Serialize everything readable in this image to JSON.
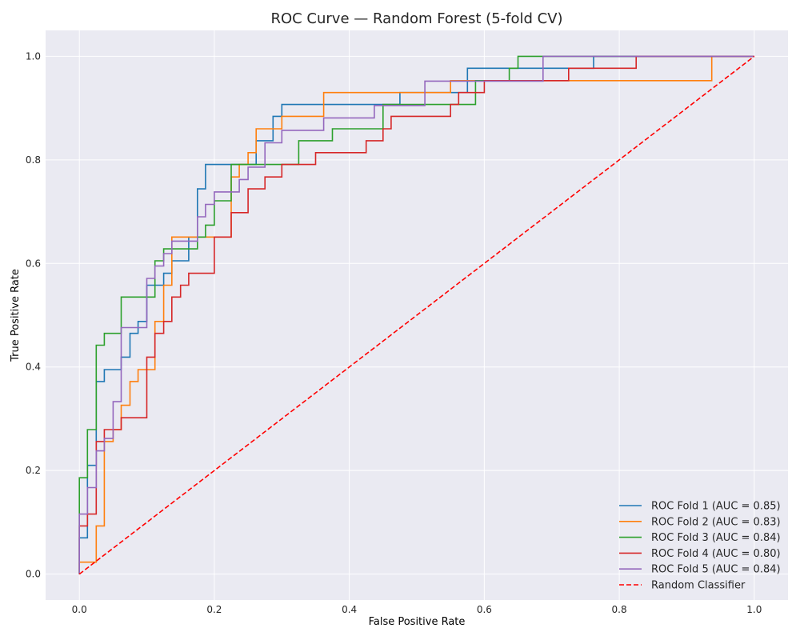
{
  "chart_data": {
    "type": "line",
    "title": "ROC Curve — Random Forest (5-fold CV)",
    "xlabel": "False Positive Rate",
    "ylabel": "True Positive Rate",
    "xlim": [
      -0.05,
      1.05
    ],
    "ylim": [
      -0.05,
      1.05
    ],
    "xticks": [
      "0.0",
      "0.2",
      "0.4",
      "0.6",
      "0.8",
      "1.0"
    ],
    "yticks": [
      "0.0",
      "0.2",
      "0.4",
      "0.6",
      "0.8",
      "1.0"
    ],
    "grid": true,
    "legend_position": "lower-right",
    "series": [
      {
        "name": "ROC Fold 1 (AUC = 0.85)",
        "color": "#1f77b4",
        "step": true,
        "dash": false,
        "x": [
          0.0,
          0.0,
          0.012,
          0.012,
          0.025,
          0.025,
          0.037,
          0.037,
          0.062,
          0.062,
          0.075,
          0.075,
          0.087,
          0.087,
          0.1,
          0.1,
          0.125,
          0.125,
          0.137,
          0.137,
          0.162,
          0.162,
          0.175,
          0.175,
          0.187,
          0.187,
          0.262,
          0.262,
          0.287,
          0.287,
          0.3,
          0.3,
          0.475,
          0.475,
          0.575,
          0.575,
          0.762,
          0.762,
          1.0
        ],
        "y": [
          0.0,
          0.07,
          0.07,
          0.21,
          0.21,
          0.372,
          0.372,
          0.395,
          0.395,
          0.419,
          0.419,
          0.465,
          0.465,
          0.488,
          0.488,
          0.558,
          0.558,
          0.581,
          0.581,
          0.605,
          0.605,
          0.651,
          0.651,
          0.744,
          0.744,
          0.791,
          0.791,
          0.837,
          0.837,
          0.884,
          0.884,
          0.907,
          0.907,
          0.93,
          0.93,
          0.977,
          0.977,
          1.0,
          1.0
        ]
      },
      {
        "name": "ROC Fold 2 (AUC = 0.83)",
        "color": "#ff7f0e",
        "step": true,
        "dash": false,
        "x": [
          0.0,
          0.0,
          0.025,
          0.025,
          0.037,
          0.037,
          0.05,
          0.05,
          0.062,
          0.062,
          0.075,
          0.075,
          0.087,
          0.087,
          0.112,
          0.112,
          0.125,
          0.125,
          0.137,
          0.137,
          0.162,
          0.162,
          0.225,
          0.225,
          0.237,
          0.237,
          0.25,
          0.25,
          0.262,
          0.262,
          0.3,
          0.3,
          0.362,
          0.362,
          0.55,
          0.55,
          0.937,
          0.937,
          1.0
        ],
        "y": [
          0.0,
          0.023,
          0.023,
          0.093,
          0.093,
          0.256,
          0.256,
          0.279,
          0.279,
          0.326,
          0.326,
          0.372,
          0.372,
          0.395,
          0.395,
          0.488,
          0.488,
          0.558,
          0.558,
          0.651,
          0.651,
          0.651,
          0.651,
          0.767,
          0.767,
          0.791,
          0.791,
          0.814,
          0.814,
          0.86,
          0.86,
          0.884,
          0.884,
          0.93,
          0.93,
          0.953,
          0.953,
          1.0,
          1.0
        ]
      },
      {
        "name": "ROC Fold 3 (AUC = 0.84)",
        "color": "#2ca02c",
        "step": true,
        "dash": false,
        "x": [
          0.0,
          0.0,
          0.012,
          0.012,
          0.025,
          0.025,
          0.037,
          0.037,
          0.062,
          0.062,
          0.112,
          0.112,
          0.125,
          0.125,
          0.175,
          0.175,
          0.187,
          0.187,
          0.2,
          0.2,
          0.225,
          0.225,
          0.325,
          0.325,
          0.375,
          0.375,
          0.45,
          0.45,
          0.587,
          0.587,
          0.637,
          0.637,
          0.65,
          0.65,
          1.0
        ],
        "y": [
          0.0,
          0.186,
          0.186,
          0.279,
          0.279,
          0.442,
          0.442,
          0.465,
          0.465,
          0.535,
          0.535,
          0.605,
          0.605,
          0.628,
          0.628,
          0.651,
          0.651,
          0.674,
          0.674,
          0.721,
          0.721,
          0.791,
          0.791,
          0.837,
          0.837,
          0.86,
          0.86,
          0.907,
          0.907,
          0.953,
          0.953,
          0.977,
          0.977,
          1.0,
          1.0
        ]
      },
      {
        "name": "ROC Fold 4 (AUC = 0.80)",
        "color": "#d62728",
        "step": true,
        "dash": false,
        "x": [
          0.0,
          0.0,
          0.012,
          0.012,
          0.025,
          0.025,
          0.037,
          0.037,
          0.062,
          0.062,
          0.1,
          0.1,
          0.112,
          0.112,
          0.125,
          0.125,
          0.137,
          0.137,
          0.15,
          0.15,
          0.162,
          0.162,
          0.2,
          0.2,
          0.225,
          0.225,
          0.25,
          0.25,
          0.275,
          0.275,
          0.3,
          0.3,
          0.35,
          0.35,
          0.425,
          0.425,
          0.45,
          0.45,
          0.462,
          0.462,
          0.55,
          0.55,
          0.562,
          0.562,
          0.6,
          0.6,
          0.625,
          0.625,
          0.725,
          0.725,
          0.825,
          0.825,
          1.0
        ],
        "y": [
          0.0,
          0.093,
          0.093,
          0.116,
          0.116,
          0.256,
          0.256,
          0.279,
          0.279,
          0.302,
          0.302,
          0.419,
          0.419,
          0.465,
          0.465,
          0.488,
          0.488,
          0.535,
          0.535,
          0.558,
          0.558,
          0.581,
          0.581,
          0.651,
          0.651,
          0.698,
          0.698,
          0.744,
          0.744,
          0.767,
          0.767,
          0.791,
          0.791,
          0.814,
          0.814,
          0.837,
          0.837,
          0.86,
          0.86,
          0.884,
          0.884,
          0.907,
          0.907,
          0.93,
          0.93,
          0.953,
          0.953,
          0.953,
          0.953,
          0.977,
          0.977,
          1.0,
          1.0
        ]
      },
      {
        "name": "ROC Fold 5 (AUC = 0.84)",
        "color": "#9467bd",
        "step": true,
        "dash": false,
        "x": [
          0.0,
          0.0,
          0.012,
          0.012,
          0.025,
          0.025,
          0.037,
          0.037,
          0.05,
          0.05,
          0.062,
          0.062,
          0.1,
          0.1,
          0.112,
          0.112,
          0.125,
          0.125,
          0.137,
          0.137,
          0.175,
          0.175,
          0.187,
          0.187,
          0.2,
          0.2,
          0.237,
          0.237,
          0.25,
          0.25,
          0.275,
          0.275,
          0.3,
          0.3,
          0.362,
          0.362,
          0.437,
          0.437,
          0.512,
          0.512,
          0.525,
          0.525,
          0.687,
          0.687,
          1.0
        ],
        "y": [
          0.0,
          0.116,
          0.116,
          0.167,
          0.167,
          0.238,
          0.238,
          0.262,
          0.262,
          0.333,
          0.333,
          0.476,
          0.476,
          0.571,
          0.571,
          0.595,
          0.595,
          0.619,
          0.619,
          0.643,
          0.643,
          0.69,
          0.69,
          0.714,
          0.714,
          0.738,
          0.738,
          0.762,
          0.762,
          0.786,
          0.786,
          0.833,
          0.833,
          0.857,
          0.857,
          0.881,
          0.881,
          0.905,
          0.905,
          0.952,
          0.952,
          0.952,
          0.952,
          1.0,
          1.0
        ]
      },
      {
        "name": "Random Classifier",
        "color": "#ff0000",
        "step": false,
        "dash": true,
        "x": [
          0.0,
          1.0
        ],
        "y": [
          0.0,
          1.0
        ]
      }
    ]
  }
}
